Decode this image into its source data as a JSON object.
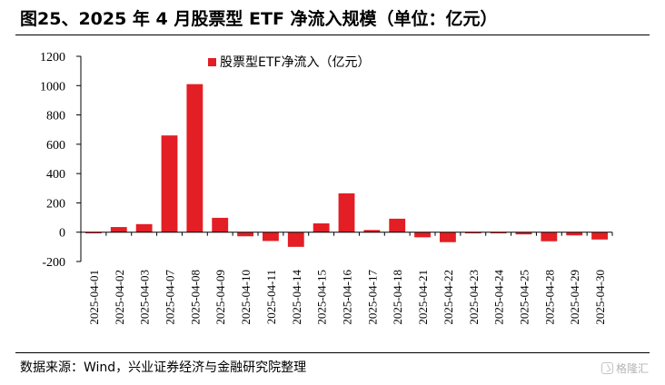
{
  "figure": {
    "title": "图25、2025 年 4 月股票型 ETF 净流入规模（单位：亿元）",
    "source": "数据来源：Wind，兴业证券经济与金融研究院整理",
    "watermark": "格隆汇"
  },
  "chart_data": {
    "type": "bar",
    "categories": [
      "2025-04-01",
      "2025-04-02",
      "2025-04-03",
      "2025-04-07",
      "2025-04-08",
      "2025-04-09",
      "2025-04-10",
      "2025-04-11",
      "2025-04-14",
      "2025-04-15",
      "2025-04-16",
      "2025-04-17",
      "2025-04-18",
      "2025-04-21",
      "2025-04-22",
      "2025-04-23",
      "2025-04-24",
      "2025-04-25",
      "2025-04-28",
      "2025-04-29",
      "2025-04-30"
    ],
    "series": [
      {
        "name": "股票型ETF净流入（亿元）",
        "color": "#e31e24",
        "values": [
          -8,
          35,
          55,
          660,
          1010,
          98,
          -28,
          -60,
          -100,
          60,
          265,
          15,
          92,
          -35,
          -68,
          -8,
          -8,
          -15,
          -62,
          -22,
          -50
        ]
      }
    ],
    "ylim": [
      -200,
      1200
    ],
    "yticks": [
      -200,
      0,
      200,
      400,
      600,
      800,
      1000,
      1200
    ],
    "legend_position": "top-center",
    "grid": false
  }
}
